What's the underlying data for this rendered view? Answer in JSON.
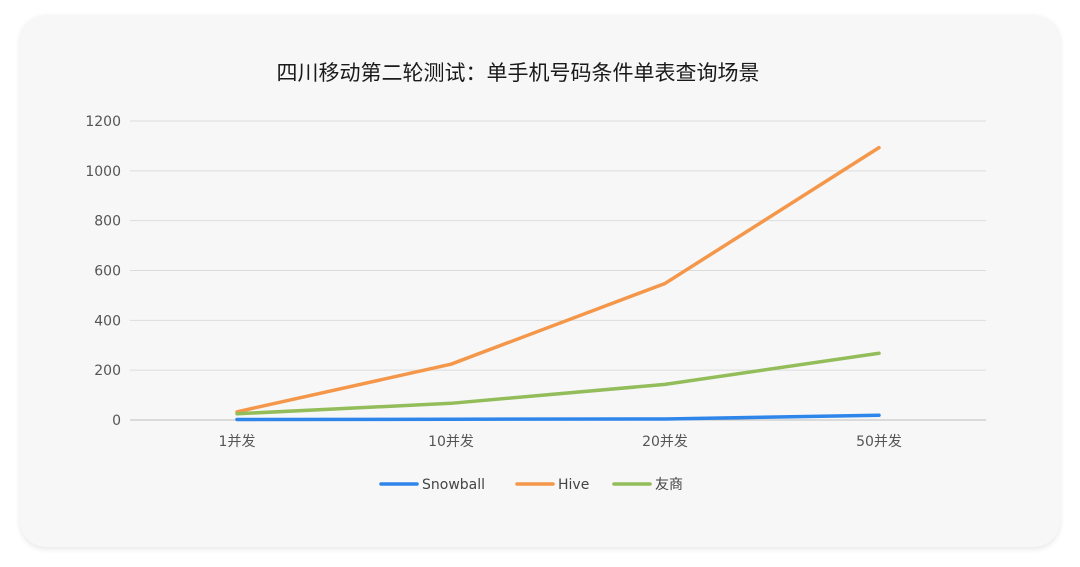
{
  "chart_data": {
    "type": "line",
    "title": "四川移动第二轮测试：单手机号码条件单表查询场景",
    "xlabel": "",
    "ylabel": "",
    "categories": [
      "1并发",
      "10并发",
      "20并发",
      "50并发"
    ],
    "ylim": [
      0,
      1200
    ],
    "yticks": [
      0,
      200,
      400,
      600,
      800,
      1000,
      1200
    ],
    "grid": true,
    "legend": "bottom",
    "series": [
      {
        "name": "Snowball",
        "color": "#2e86ea",
        "values": [
          2,
          3,
          4,
          19
        ]
      },
      {
        "name": "Hive",
        "color": "#f4974a",
        "values": [
          33,
          224,
          548,
          1093
        ]
      },
      {
        "name": "友商",
        "color": "#93bd5a",
        "values": [
          25,
          67,
          143,
          268
        ]
      }
    ]
  }
}
